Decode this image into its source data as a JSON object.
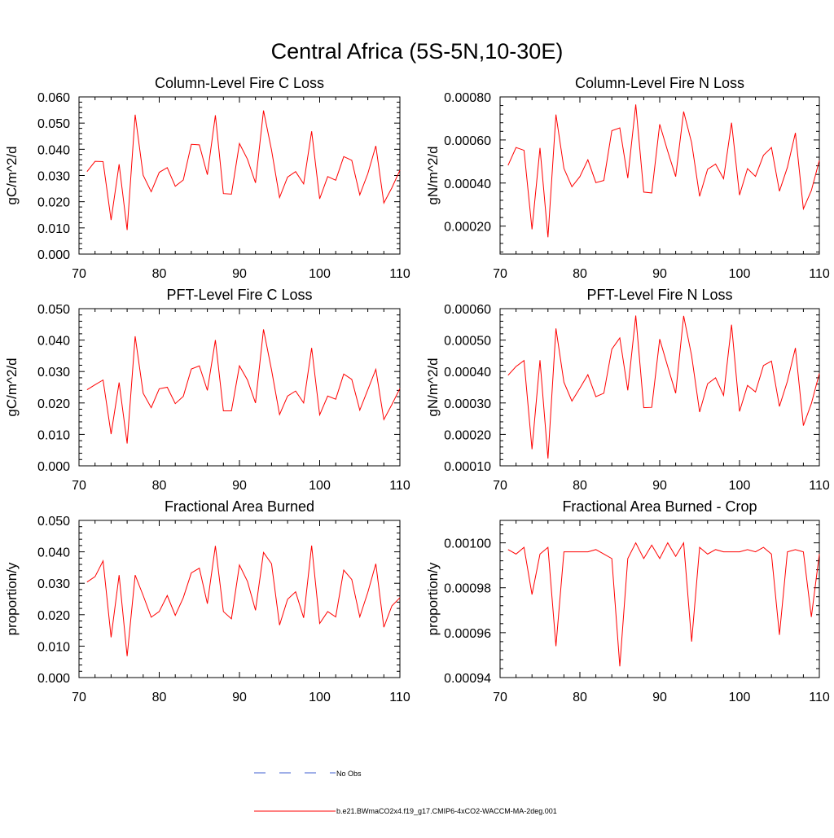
{
  "figure_title": "Central Africa (5S-5N,10-30E)",
  "legend": [
    {
      "label": "No Obs",
      "color": "#3f5fd0",
      "style": "dashed"
    },
    {
      "label": "b.e21.BWmaCO2x4.f19_g17.CMIP6-4xCO2-WACCM-MA-2deg.001",
      "color": "#ff0000",
      "style": "solid"
    }
  ],
  "chart_data": [
    {
      "type": "line",
      "title": "Column-Level Fire C Loss",
      "ylabel": "gC/m^2/d",
      "xlim": [
        70,
        110
      ],
      "ylim": [
        0,
        0.06
      ],
      "xticks": [
        "70",
        "80",
        "90",
        "100",
        "110"
      ],
      "yticks": [
        "0.000",
        "0.010",
        "0.020",
        "0.030",
        "0.040",
        "0.050",
        "0.060"
      ],
      "x": [
        71,
        72,
        73,
        74,
        75,
        76,
        77,
        78,
        79,
        80,
        81,
        82,
        83,
        84,
        85,
        86,
        87,
        88,
        89,
        90,
        91,
        92,
        93,
        94,
        95,
        96,
        97,
        98,
        99,
        100,
        101,
        102,
        103,
        104,
        105,
        106,
        107,
        108,
        109,
        110
      ],
      "series": [
        {
          "color": "#ff0000",
          "values": [
            0.0315,
            0.0354,
            0.0353,
            0.013,
            0.0343,
            0.0092,
            0.0532,
            0.0301,
            0.0238,
            0.0312,
            0.033,
            0.0259,
            0.0283,
            0.0419,
            0.0417,
            0.0303,
            0.053,
            0.0231,
            0.0229,
            0.0422,
            0.0362,
            0.0272,
            0.0548,
            0.0397,
            0.0216,
            0.0294,
            0.0315,
            0.0268,
            0.0469,
            0.0211,
            0.0296,
            0.0282,
            0.0372,
            0.0358,
            0.0226,
            0.0307,
            0.0413,
            0.0195,
            0.0253,
            0.032
          ]
        }
      ]
    },
    {
      "type": "line",
      "title": "Column-Level Fire N Loss",
      "ylabel": "gN/m^2/d",
      "xlim": [
        70,
        110
      ],
      "ylim": [
        7e-05,
        0.0008
      ],
      "xticks": [
        "70",
        "80",
        "90",
        "100",
        "110"
      ],
      "yticks": [
        "0.00020",
        "0.00040",
        "0.00060",
        "0.00080"
      ],
      "x": [
        71,
        72,
        73,
        74,
        75,
        76,
        77,
        78,
        79,
        80,
        81,
        82,
        83,
        84,
        85,
        86,
        87,
        88,
        89,
        90,
        91,
        92,
        93,
        94,
        95,
        96,
        97,
        98,
        99,
        100,
        101,
        102,
        103,
        104,
        105,
        106,
        107,
        108,
        109,
        110
      ],
      "series": [
        {
          "color": "#ff0000",
          "values": [
            0.000482,
            0.000565,
            0.000552,
            0.000185,
            0.000563,
            0.000148,
            0.000718,
            0.000468,
            0.000383,
            0.00043,
            0.000508,
            0.000402,
            0.000412,
            0.000643,
            0.000656,
            0.000423,
            0.000765,
            0.000358,
            0.000354,
            0.000673,
            0.000548,
            0.00043,
            0.000732,
            0.000587,
            0.000338,
            0.000464,
            0.000488,
            0.00042,
            0.00068,
            0.000344,
            0.000467,
            0.000431,
            0.000529,
            0.000565,
            0.000362,
            0.000473,
            0.000633,
            0.00028,
            0.000365,
            0.000505
          ]
        }
      ]
    },
    {
      "type": "line",
      "title": "PFT-Level Fire C Loss",
      "ylabel": "gC/m^2/d",
      "xlim": [
        70,
        110
      ],
      "ylim": [
        0,
        0.05
      ],
      "xticks": [
        "70",
        "80",
        "90",
        "100",
        "110"
      ],
      "yticks": [
        "0.000",
        "0.010",
        "0.020",
        "0.030",
        "0.040",
        "0.050"
      ],
      "x": [
        71,
        72,
        73,
        74,
        75,
        76,
        77,
        78,
        79,
        80,
        81,
        82,
        83,
        84,
        85,
        86,
        87,
        88,
        89,
        90,
        91,
        92,
        93,
        94,
        95,
        96,
        97,
        98,
        99,
        100,
        101,
        102,
        103,
        104,
        105,
        106,
        107,
        108,
        109,
        110
      ],
      "series": [
        {
          "color": "#ff0000",
          "values": [
            0.0242,
            0.0258,
            0.0273,
            0.0101,
            0.0265,
            0.0071,
            0.0412,
            0.0231,
            0.0185,
            0.0245,
            0.025,
            0.0198,
            0.0221,
            0.0308,
            0.0318,
            0.024,
            0.04,
            0.0175,
            0.0175,
            0.0318,
            0.0273,
            0.02,
            0.0434,
            0.0305,
            0.0163,
            0.0222,
            0.0238,
            0.02,
            0.0375,
            0.0162,
            0.0222,
            0.0212,
            0.0292,
            0.0275,
            0.0177,
            0.0242,
            0.0307,
            0.0147,
            0.0195,
            0.0246
          ]
        }
      ]
    },
    {
      "type": "line",
      "title": "PFT-Level Fire N Loss",
      "ylabel": "gN/m^2/d",
      "xlim": [
        70,
        110
      ],
      "ylim": [
        0.0001,
        0.0006
      ],
      "xticks": [
        "70",
        "80",
        "90",
        "100",
        "110"
      ],
      "yticks": [
        "0.00010",
        "0.00020",
        "0.00030",
        "0.00040",
        "0.00050",
        "0.00060"
      ],
      "x": [
        71,
        72,
        73,
        74,
        75,
        76,
        77,
        78,
        79,
        80,
        81,
        82,
        83,
        84,
        85,
        86,
        87,
        88,
        89,
        90,
        91,
        92,
        93,
        94,
        95,
        96,
        97,
        98,
        99,
        100,
        101,
        102,
        103,
        104,
        105,
        106,
        107,
        108,
        109,
        110
      ],
      "series": [
        {
          "color": "#ff0000",
          "values": [
            0.000388,
            0.000416,
            0.000435,
            0.000153,
            0.000436,
            0.000123,
            0.000537,
            0.000366,
            0.000306,
            0.000347,
            0.00039,
            0.00032,
            0.000331,
            0.000471,
            0.000507,
            0.00034,
            0.000578,
            0.000285,
            0.000286,
            0.000503,
            0.000416,
            0.000331,
            0.000577,
            0.00045,
            0.000271,
            0.000361,
            0.00038,
            0.000324,
            0.000549,
            0.000273,
            0.000356,
            0.000335,
            0.000419,
            0.000433,
            0.000289,
            0.000369,
            0.000475,
            0.000228,
            0.000298,
            0.000394
          ]
        }
      ]
    },
    {
      "type": "line",
      "title": "Fractional Area Burned",
      "ylabel": "proportion/y",
      "xlim": [
        70,
        110
      ],
      "ylim": [
        0,
        0.05
      ],
      "xticks": [
        "70",
        "80",
        "90",
        "100",
        "110"
      ],
      "yticks": [
        "0.000",
        "0.010",
        "0.020",
        "0.030",
        "0.040",
        "0.050"
      ],
      "x": [
        71,
        72,
        73,
        74,
        75,
        76,
        77,
        78,
        79,
        80,
        81,
        82,
        83,
        84,
        85,
        86,
        87,
        88,
        89,
        90,
        91,
        92,
        93,
        94,
        95,
        96,
        97,
        98,
        99,
        100,
        101,
        102,
        103,
        104,
        105,
        106,
        107,
        108,
        109,
        110
      ],
      "series": [
        {
          "color": "#ff0000",
          "values": [
            0.0304,
            0.0321,
            0.0371,
            0.0128,
            0.0326,
            0.0068,
            0.0326,
            0.0261,
            0.0192,
            0.021,
            0.0261,
            0.0198,
            0.0254,
            0.0333,
            0.0348,
            0.0235,
            0.0419,
            0.021,
            0.0187,
            0.0358,
            0.0306,
            0.0214,
            0.0398,
            0.0362,
            0.0167,
            0.0249,
            0.0273,
            0.019,
            0.042,
            0.0172,
            0.021,
            0.0193,
            0.0342,
            0.0312,
            0.0193,
            0.0271,
            0.0362,
            0.016,
            0.0228,
            0.0254
          ]
        }
      ]
    },
    {
      "type": "line",
      "title": "Fractional Area Burned - Crop",
      "ylabel": "proportion/y",
      "xlim": [
        70,
        110
      ],
      "ylim": [
        0.00094,
        0.00101
      ],
      "xticks": [
        "70",
        "80",
        "90",
        "100",
        "110"
      ],
      "yticks": [
        "0.00094",
        "0.00096",
        "0.00098",
        "0.00100"
      ],
      "x": [
        71,
        72,
        73,
        74,
        75,
        76,
        77,
        78,
        79,
        80,
        81,
        82,
        83,
        84,
        85,
        86,
        87,
        88,
        89,
        90,
        91,
        92,
        93,
        94,
        95,
        96,
        97,
        98,
        99,
        100,
        101,
        102,
        103,
        104,
        105,
        106,
        107,
        108,
        109,
        110
      ],
      "series": [
        {
          "color": "#ff0000",
          "values": [
            0.000997,
            0.000995,
            0.000998,
            0.000977,
            0.000995,
            0.000998,
            0.000954,
            0.000996,
            0.000996,
            0.000996,
            0.000996,
            0.000997,
            0.000995,
            0.000993,
            0.000945,
            0.000993,
            0.001,
            0.000993,
            0.000999,
            0.000993,
            0.001,
            0.000994,
            0.001,
            0.000956,
            0.000998,
            0.000995,
            0.000997,
            0.000996,
            0.000996,
            0.000996,
            0.000997,
            0.000996,
            0.000998,
            0.000995,
            0.000959,
            0.000996,
            0.000997,
            0.000996,
            0.000967,
            0.000995
          ]
        }
      ]
    }
  ]
}
